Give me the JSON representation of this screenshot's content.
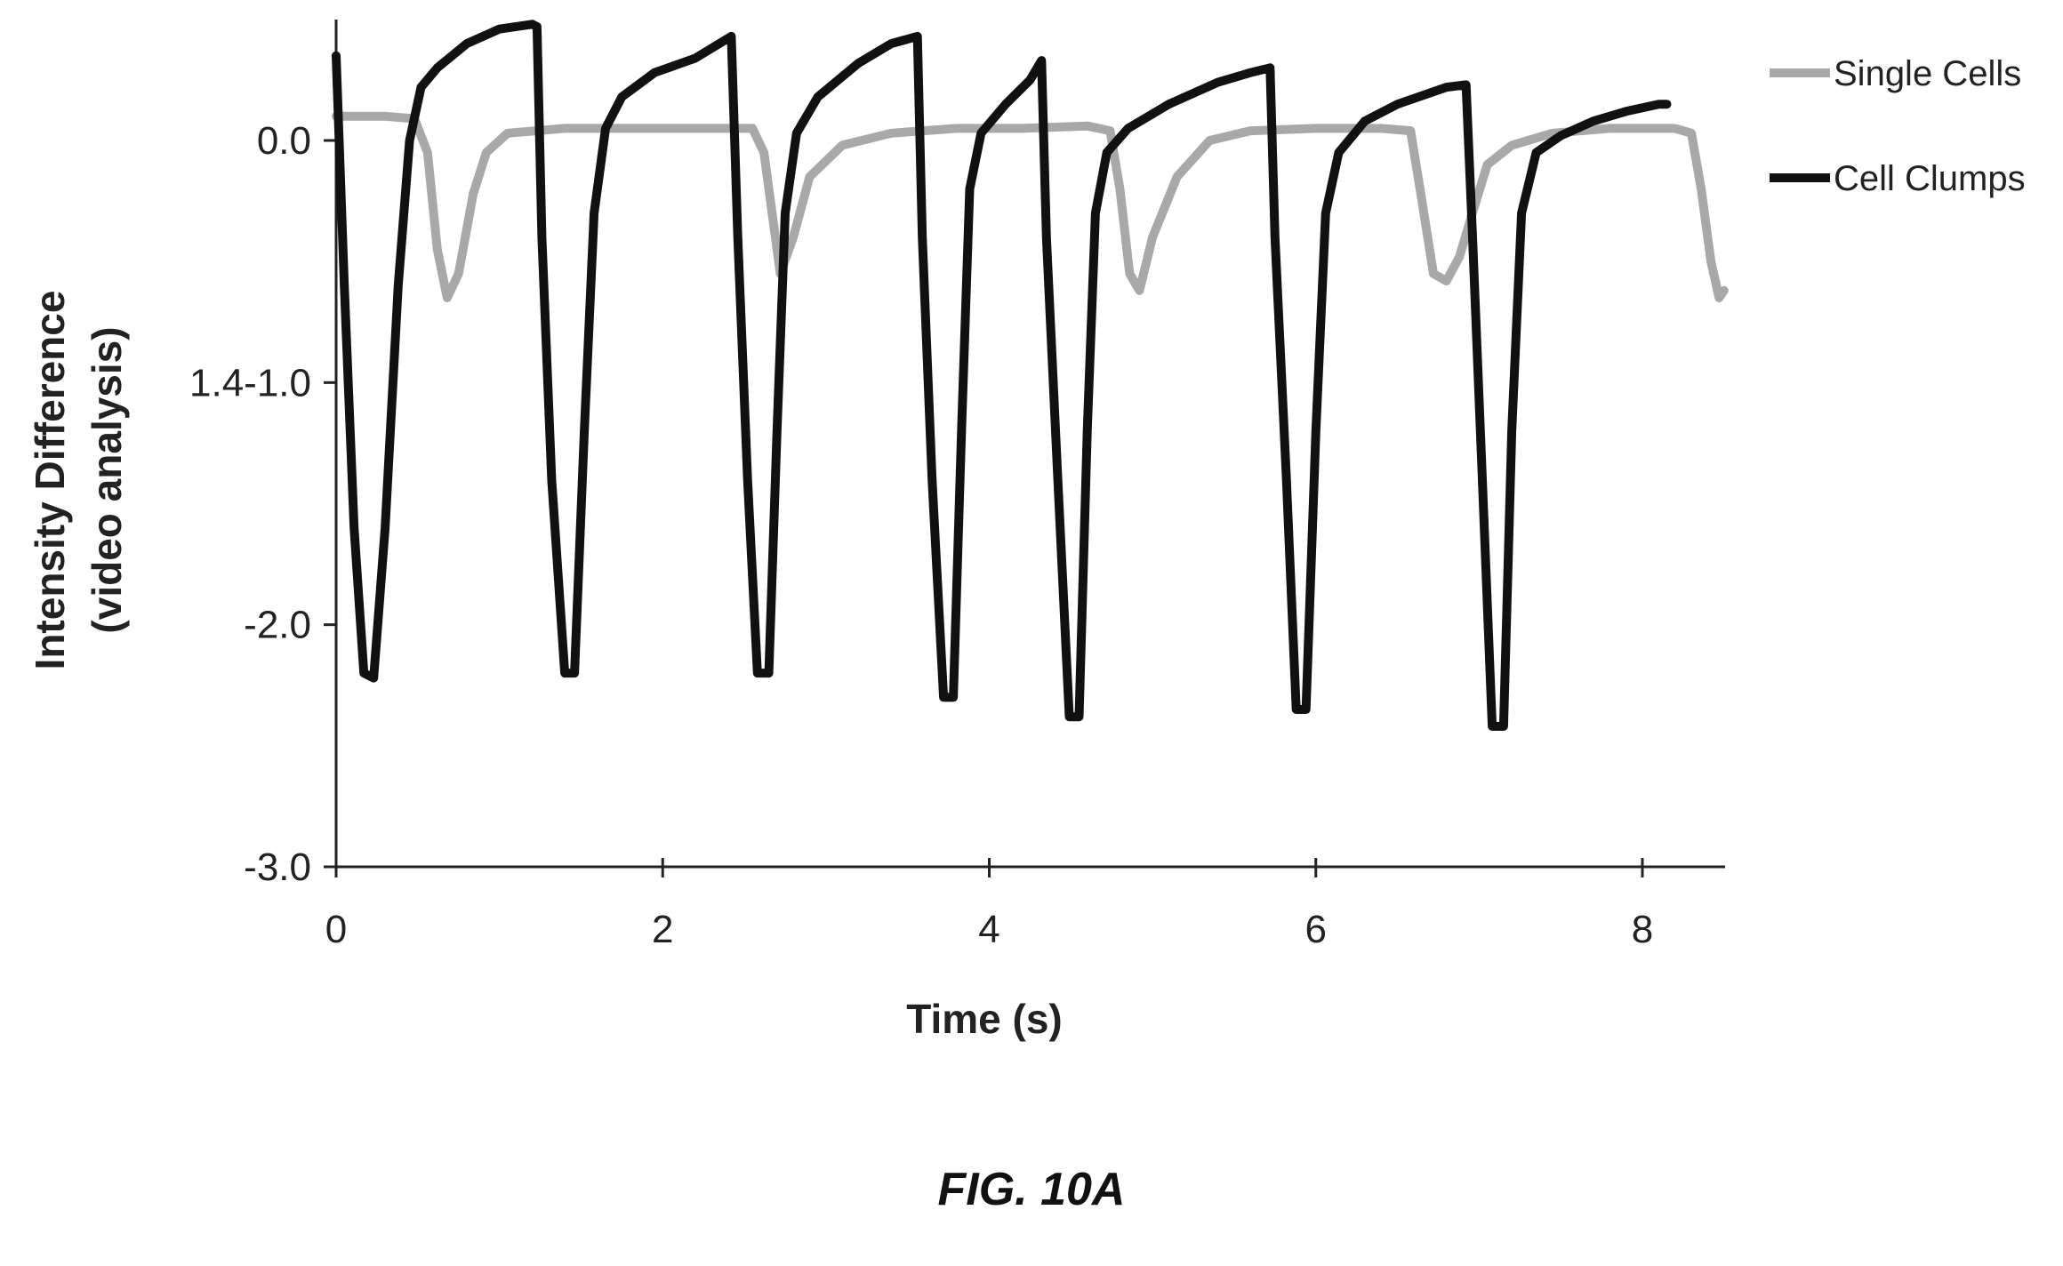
{
  "chart_data": {
    "type": "line",
    "title": "",
    "xlabel": "Time (s)",
    "ylabel_lines": [
      "Intensity Difference",
      "(video analysis)"
    ],
    "xlim": [
      0,
      8.5
    ],
    "ylim": [
      -3.0,
      0.5
    ],
    "xticks": [
      {
        "value": 0,
        "label": "0"
      },
      {
        "value": 2,
        "label": "2"
      },
      {
        "value": 4,
        "label": "4"
      },
      {
        "value": 6,
        "label": "6"
      },
      {
        "value": 8,
        "label": "8"
      }
    ],
    "yticks": [
      {
        "value": 0.0,
        "label": "0.0"
      },
      {
        "value": -1.0,
        "label": "1.4-1.0"
      },
      {
        "value": -2.0,
        "label": "-2.0"
      },
      {
        "value": -3.0,
        "label": "-3.0"
      }
    ],
    "grid": false,
    "legend_position": "top-right",
    "series": [
      {
        "name": "Single Cells",
        "color": "#a8a8a8",
        "points": [
          [
            0.0,
            0.1
          ],
          [
            0.3,
            0.1
          ],
          [
            0.48,
            0.09
          ],
          [
            0.56,
            -0.05
          ],
          [
            0.62,
            -0.45
          ],
          [
            0.68,
            -0.65
          ],
          [
            0.75,
            -0.55
          ],
          [
            0.84,
            -0.22
          ],
          [
            0.92,
            -0.05
          ],
          [
            1.05,
            0.03
          ],
          [
            1.4,
            0.05
          ],
          [
            1.8,
            0.05
          ],
          [
            2.2,
            0.05
          ],
          [
            2.55,
            0.05
          ],
          [
            2.62,
            -0.05
          ],
          [
            2.67,
            -0.3
          ],
          [
            2.72,
            -0.55
          ],
          [
            2.8,
            -0.4
          ],
          [
            2.9,
            -0.15
          ],
          [
            3.1,
            -0.02
          ],
          [
            3.4,
            0.03
          ],
          [
            3.8,
            0.05
          ],
          [
            4.2,
            0.05
          ],
          [
            4.6,
            0.06
          ],
          [
            4.74,
            0.04
          ],
          [
            4.8,
            -0.2
          ],
          [
            4.86,
            -0.55
          ],
          [
            4.92,
            -0.62
          ],
          [
            5.0,
            -0.4
          ],
          [
            5.15,
            -0.15
          ],
          [
            5.35,
            0.0
          ],
          [
            5.6,
            0.04
          ],
          [
            6.0,
            0.05
          ],
          [
            6.4,
            0.05
          ],
          [
            6.58,
            0.04
          ],
          [
            6.65,
            -0.25
          ],
          [
            6.72,
            -0.55
          ],
          [
            6.8,
            -0.58
          ],
          [
            6.88,
            -0.48
          ],
          [
            6.95,
            -0.32
          ],
          [
            7.05,
            -0.1
          ],
          [
            7.2,
            -0.02
          ],
          [
            7.45,
            0.03
          ],
          [
            7.8,
            0.05
          ],
          [
            8.2,
            0.05
          ],
          [
            8.3,
            0.03
          ],
          [
            8.36,
            -0.2
          ],
          [
            8.42,
            -0.5
          ],
          [
            8.47,
            -0.65
          ],
          [
            8.5,
            -0.62
          ]
        ]
      },
      {
        "name": "Cell Clumps",
        "color": "#111111",
        "points": [
          [
            0.0,
            0.35
          ],
          [
            0.05,
            -0.6
          ],
          [
            0.11,
            -1.6
          ],
          [
            0.17,
            -2.2
          ],
          [
            0.23,
            -2.22
          ],
          [
            0.3,
            -1.6
          ],
          [
            0.38,
            -0.6
          ],
          [
            0.45,
            0.0
          ],
          [
            0.52,
            0.22
          ],
          [
            0.62,
            0.3
          ],
          [
            0.8,
            0.4
          ],
          [
            1.0,
            0.46
          ],
          [
            1.2,
            0.48
          ],
          [
            1.23,
            0.47
          ],
          [
            1.26,
            -0.4
          ],
          [
            1.32,
            -1.4
          ],
          [
            1.4,
            -2.2
          ],
          [
            1.46,
            -2.2
          ],
          [
            1.52,
            -1.2
          ],
          [
            1.58,
            -0.3
          ],
          [
            1.65,
            0.05
          ],
          [
            1.75,
            0.18
          ],
          [
            1.95,
            0.28
          ],
          [
            2.2,
            0.34
          ],
          [
            2.42,
            0.43
          ],
          [
            2.46,
            -0.4
          ],
          [
            2.52,
            -1.4
          ],
          [
            2.58,
            -2.2
          ],
          [
            2.65,
            -2.2
          ],
          [
            2.7,
            -1.2
          ],
          [
            2.75,
            -0.3
          ],
          [
            2.82,
            0.03
          ],
          [
            2.95,
            0.18
          ],
          [
            3.2,
            0.32
          ],
          [
            3.4,
            0.4
          ],
          [
            3.56,
            0.43
          ],
          [
            3.59,
            -0.4
          ],
          [
            3.65,
            -1.4
          ],
          [
            3.72,
            -2.3
          ],
          [
            3.78,
            -2.3
          ],
          [
            3.83,
            -1.2
          ],
          [
            3.88,
            -0.2
          ],
          [
            3.95,
            0.03
          ],
          [
            4.1,
            0.15
          ],
          [
            4.25,
            0.25
          ],
          [
            4.32,
            0.33
          ],
          [
            4.35,
            -0.4
          ],
          [
            4.42,
            -1.4
          ],
          [
            4.49,
            -2.38
          ],
          [
            4.55,
            -2.38
          ],
          [
            4.6,
            -1.2
          ],
          [
            4.65,
            -0.3
          ],
          [
            4.72,
            -0.05
          ],
          [
            4.85,
            0.05
          ],
          [
            5.1,
            0.15
          ],
          [
            5.4,
            0.24
          ],
          [
            5.6,
            0.28
          ],
          [
            5.72,
            0.3
          ],
          [
            5.75,
            -0.4
          ],
          [
            5.82,
            -1.4
          ],
          [
            5.88,
            -2.35
          ],
          [
            5.94,
            -2.35
          ],
          [
            6.0,
            -1.2
          ],
          [
            6.06,
            -0.3
          ],
          [
            6.14,
            -0.05
          ],
          [
            6.3,
            0.08
          ],
          [
            6.5,
            0.15
          ],
          [
            6.8,
            0.22
          ],
          [
            6.92,
            0.23
          ],
          [
            6.96,
            -0.4
          ],
          [
            7.02,
            -1.4
          ],
          [
            7.08,
            -2.42
          ],
          [
            7.15,
            -2.42
          ],
          [
            7.2,
            -1.2
          ],
          [
            7.26,
            -0.3
          ],
          [
            7.35,
            -0.05
          ],
          [
            7.5,
            0.02
          ],
          [
            7.7,
            0.08
          ],
          [
            7.9,
            0.12
          ],
          [
            8.1,
            0.15
          ],
          [
            8.15,
            0.15
          ]
        ]
      }
    ]
  },
  "caption": "FIG. 10A"
}
